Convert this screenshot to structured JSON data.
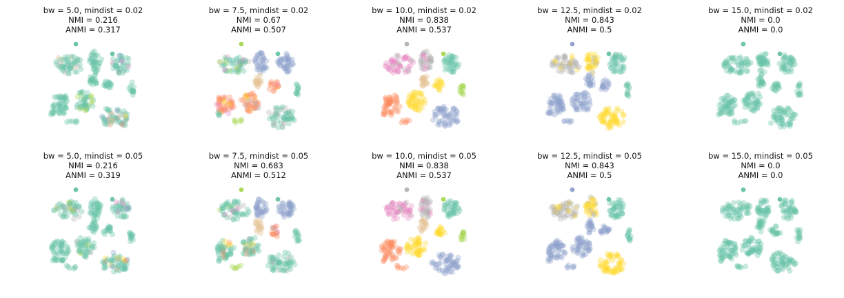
{
  "figure": {
    "palette": {
      "teal": "#66c2a5",
      "orange": "#fc8d62",
      "blue": "#8da0cb",
      "pink": "#e78ac3",
      "green": "#a6d854",
      "yellow": "#ffd92f",
      "tan": "#e5c494",
      "gray": "#b3b3b3"
    },
    "point_alpha": 0.35
  },
  "chart_data": [
    {
      "type": "scatter",
      "bw": "5.0",
      "mindist": "0.02",
      "title_line1": "bw = 5.0, mindist = 0.02",
      "title_line2": "NMI = 0.216",
      "title_line3": "ANMI = 0.317",
      "scheme": "a1"
    },
    {
      "type": "scatter",
      "bw": "7.5",
      "mindist": "0.02",
      "title_line1": "bw = 7.5, mindist = 0.02",
      "title_line2": "NMI = 0.67",
      "title_line3": "ANMI = 0.507",
      "scheme": "b1"
    },
    {
      "type": "scatter",
      "bw": "10.0",
      "mindist": "0.02",
      "title_line1": "bw = 10.0, mindist = 0.02",
      "title_line2": "NMI = 0.838",
      "title_line3": "ANMI = 0.537",
      "scheme": "c"
    },
    {
      "type": "scatter",
      "bw": "12.5",
      "mindist": "0.02",
      "title_line1": "bw = 12.5, mindist = 0.02",
      "title_line2": "NMI = 0.843",
      "title_line3": "ANMI = 0.5",
      "scheme": "d"
    },
    {
      "type": "scatter",
      "bw": "15.0",
      "mindist": "0.02",
      "title_line1": "bw = 15.0, mindist = 0.02",
      "title_line2": "NMI = 0.0",
      "title_line3": "ANMI = 0.0",
      "scheme": "e"
    },
    {
      "type": "scatter",
      "bw": "5.0",
      "mindist": "0.05",
      "title_line1": "bw = 5.0, mindist = 0.05",
      "title_line2": "NMI = 0.216",
      "title_line3": "ANMI = 0.319",
      "scheme": "a2"
    },
    {
      "type": "scatter",
      "bw": "7.5",
      "mindist": "0.05",
      "title_line1": "bw = 7.5, mindist = 0.05",
      "title_line2": "NMI = 0.683",
      "title_line3": "ANMI = 0.512",
      "scheme": "b2"
    },
    {
      "type": "scatter",
      "bw": "10.0",
      "mindist": "0.05",
      "title_line1": "bw = 10.0, mindist = 0.05",
      "title_line2": "NMI = 0.838",
      "title_line3": "ANMI = 0.537",
      "scheme": "c"
    },
    {
      "type": "scatter",
      "bw": "12.5",
      "mindist": "0.05",
      "title_line1": "bw = 12.5, mindist = 0.05",
      "title_line2": "NMI = 0.843",
      "title_line3": "ANMI = 0.5",
      "scheme": "d"
    },
    {
      "type": "scatter",
      "bw": "15.0",
      "mindist": "0.05",
      "title_line1": "bw = 15.0, mindist = 0.05",
      "title_line2": "NMI = 0.0",
      "title_line3": "ANMI = 0.0",
      "scheme": "e"
    }
  ]
}
